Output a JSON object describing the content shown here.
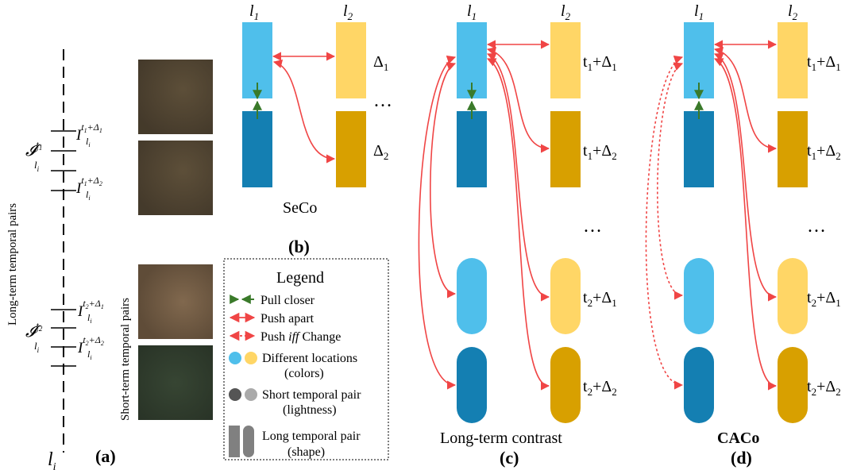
{
  "colors": {
    "light_blue": "#4FBFEB",
    "dark_blue": "#147FB2",
    "light_yellow": "#FFD666",
    "dark_yellow": "#D8A000",
    "push_red": "#F04545",
    "pull_green": "#3A7A2A",
    "legend_dark_gray": "#555555",
    "legend_light_gray": "#AAAAAA",
    "legend_shape_gray": "#808080",
    "image_1": "#4e4331",
    "image_2": "#4f4432",
    "image_3": "#6b5640",
    "image_4": "#2f3a2c"
  },
  "panel_a": {
    "caption": "(a)",
    "axis_label": "l",
    "axis_sub": "i",
    "long_term_label": "Long-term temporal pairs",
    "short_term_label": "Short-term temporal pairs",
    "group1": {
      "script_letter": "𝓘",
      "script_sub": "l",
      "script_subsub": "i",
      "script_sup": "t",
      "script_supsub": "1",
      "tick_top": {
        "base": "I",
        "sub": "l",
        "subsub": "i",
        "sup_t": "t",
        "sup_tsub": "1",
        "sup_rest": "+Δ",
        "sup_restsub": "1"
      },
      "tick_bottom": {
        "base": "I",
        "sub": "l",
        "subsub": "i",
        "sup_t": "t",
        "sup_tsub": "1",
        "sup_rest": "+Δ",
        "sup_restsub": "2"
      }
    },
    "group2": {
      "script_letter": "𝓘",
      "script_sub": "l",
      "script_subsub": "i",
      "script_sup": "t",
      "script_supsub": "2",
      "tick_top": {
        "base": "I",
        "sub": "l",
        "subsub": "i",
        "sup_t": "t",
        "sup_tsub": "2",
        "sup_rest": "+Δ",
        "sup_restsub": "1"
      },
      "tick_bottom": {
        "base": "I",
        "sub": "l",
        "subsub": "i",
        "sup_t": "t",
        "sup_tsub": "2",
        "sup_rest": "+Δ",
        "sup_restsub": "2"
      }
    }
  },
  "panel_b": {
    "caption": "(b)",
    "method": "SeCo",
    "col1": {
      "letter": "l",
      "sub": "1"
    },
    "col2": {
      "letter": "l",
      "sub": "2"
    },
    "label_top": {
      "base": "Δ",
      "sub": "1"
    },
    "label_bottom": {
      "base": "Δ",
      "sub": "2"
    },
    "ellipsis": "…"
  },
  "panel_c": {
    "caption": "(c)",
    "method": "Long-term contrast",
    "col1": {
      "letter": "l",
      "sub": "1"
    },
    "col2": {
      "letter": "l",
      "sub": "2"
    },
    "labels": [
      {
        "t": "t",
        "tsub": "1",
        "rest": "+Δ",
        "restsub": "1"
      },
      {
        "t": "t",
        "tsub": "1",
        "rest": "+Δ",
        "restsub": "2"
      },
      {
        "t": "t",
        "tsub": "2",
        "rest": "+Δ",
        "restsub": "1"
      },
      {
        "t": "t",
        "tsub": "2",
        "rest": "+Δ",
        "restsub": "2"
      }
    ],
    "ellipsis": "…"
  },
  "panel_d": {
    "caption": "(d)",
    "method": "CACo",
    "col1": {
      "letter": "l",
      "sub": "1"
    },
    "col2": {
      "letter": "l",
      "sub": "2"
    },
    "labels": [
      {
        "t": "t",
        "tsub": "1",
        "rest": "+Δ",
        "restsub": "1"
      },
      {
        "t": "t",
        "tsub": "1",
        "rest": "+Δ",
        "restsub": "2"
      },
      {
        "t": "t",
        "tsub": "2",
        "rest": "+Δ",
        "restsub": "1"
      },
      {
        "t": "t",
        "tsub": "2",
        "rest": "+Δ",
        "restsub": "2"
      }
    ],
    "ellipsis": "…"
  },
  "legend": {
    "title": "Legend",
    "pull": "Pull closer",
    "push": "Push apart",
    "push_iff_pre": "Push ",
    "push_iff_em": "iff",
    "push_iff_post": " Change",
    "locations": "Different locations",
    "locations2": "(colors)",
    "short_pair": "Short temporal pair",
    "short_pair2": "(lightness)",
    "long_pair": "Long temporal pair",
    "long_pair2": "(shape)"
  }
}
